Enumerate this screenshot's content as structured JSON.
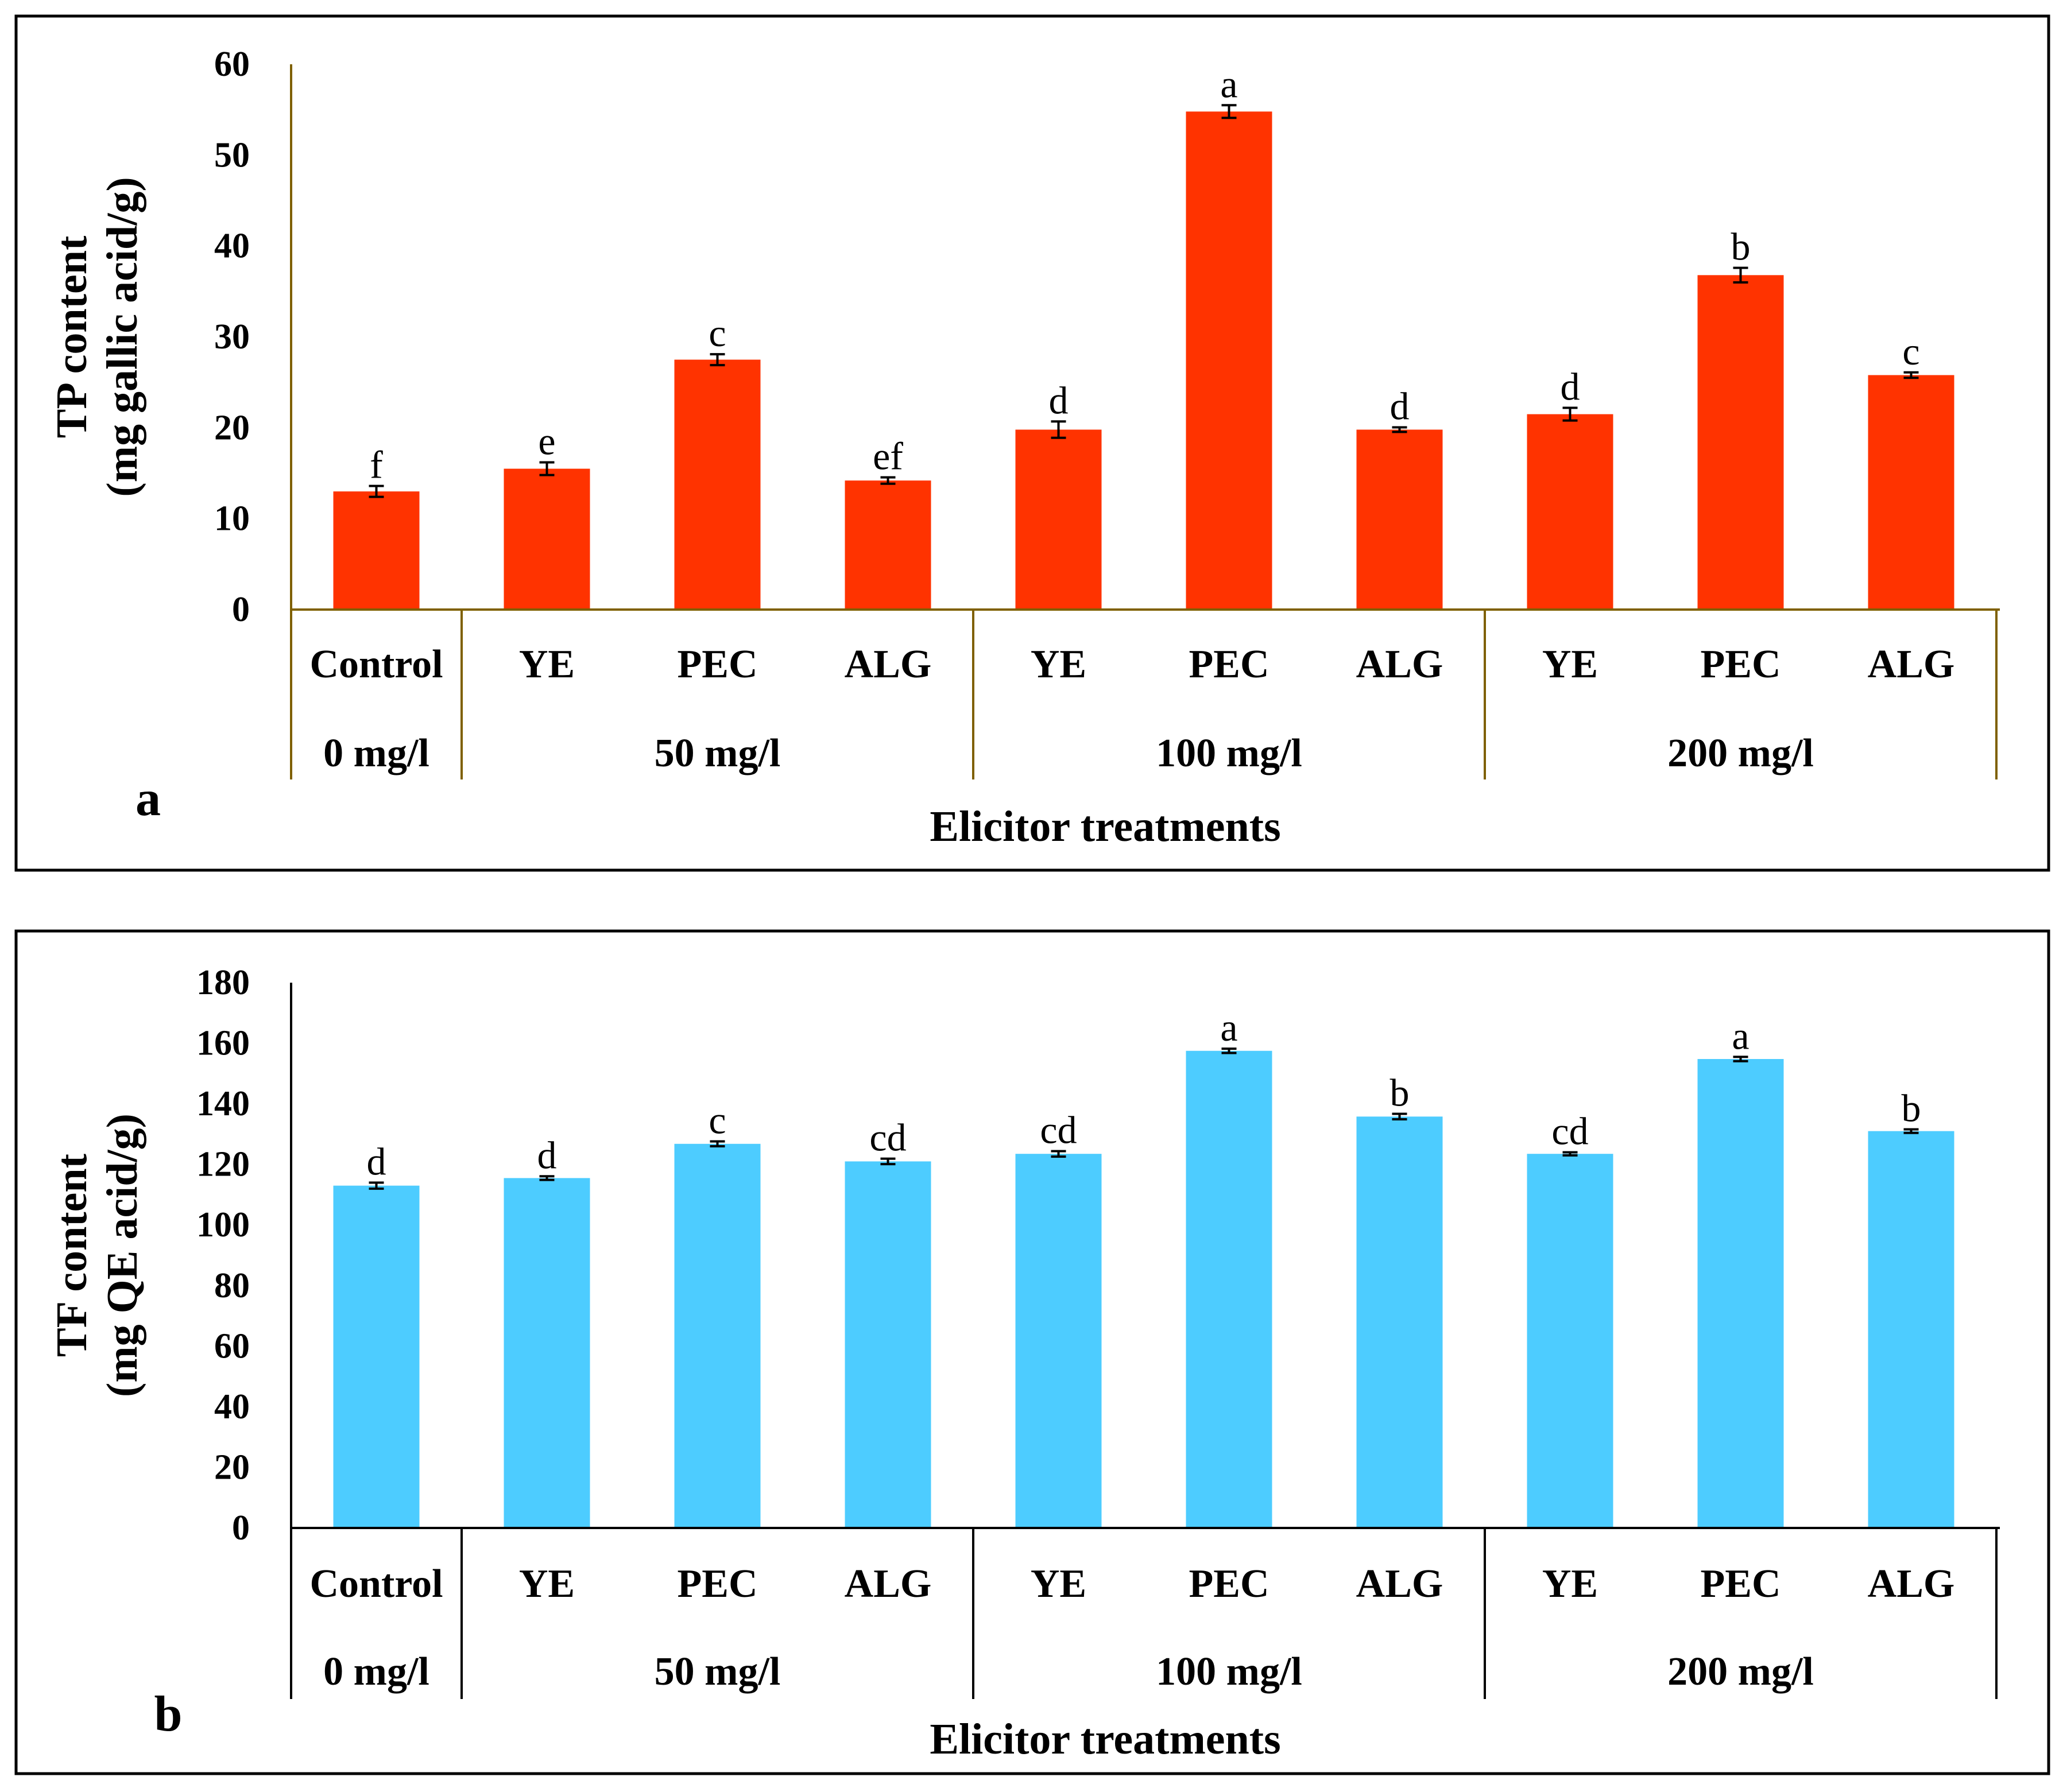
{
  "chart_data": [
    {
      "panel": "a",
      "type": "bar",
      "categories": [
        "Control",
        "YE",
        "PEC",
        "ALG",
        "YE",
        "PEC",
        "ALG",
        "YE",
        "PEC",
        "ALG"
      ],
      "groups": [
        "0 mg/l",
        "50 mg/l",
        "100 mg/l",
        "200 mg/l"
      ],
      "group_sizes": [
        1,
        3,
        3,
        3
      ],
      "values": [
        13,
        15.5,
        27.5,
        14.2,
        19.8,
        54.8,
        19.8,
        21.5,
        36.8,
        25.8
      ],
      "errors": [
        0.6,
        0.7,
        0.6,
        0.35,
        0.9,
        0.7,
        0.25,
        0.7,
        0.8,
        0.3
      ],
      "letters": [
        "f",
        "e",
        "c",
        "ef",
        "d",
        "a",
        "d",
        "d",
        "b",
        "c"
      ],
      "ylabel_line1": "TP content",
      "ylabel_line2": "(mg gallic acid/g)",
      "xlabel": "Elicitor treatments",
      "ylim": [
        0,
        60
      ],
      "yticks": [
        0,
        10,
        20,
        30,
        40,
        50,
        60
      ],
      "color": "#FF3300",
      "axis_color": "#7F6000"
    },
    {
      "panel": "b",
      "type": "bar",
      "categories": [
        "Control",
        "YE",
        "PEC",
        "ALG",
        "YE",
        "PEC",
        "ALG",
        "YE",
        "PEC",
        "ALG"
      ],
      "groups": [
        "0 mg/l",
        "50 mg/l",
        "100 mg/l",
        "200 mg/l"
      ],
      "group_sizes": [
        1,
        3,
        3,
        3
      ],
      "values": [
        113,
        115.5,
        126.8,
        121,
        123.5,
        157.5,
        135.8,
        123.5,
        154.8,
        131
      ],
      "errors": [
        1.0,
        0.6,
        0.8,
        0.9,
        0.9,
        0.7,
        0.9,
        0.5,
        0.7,
        0.6
      ],
      "letters": [
        "d",
        "d",
        "c",
        "cd",
        "cd",
        "a",
        "b",
        "cd",
        "a",
        "b"
      ],
      "ylabel_line1": "TF content",
      "ylabel_line2": "(mg QE acid/g)",
      "xlabel": "Elicitor treatments",
      "ylim": [
        0,
        180
      ],
      "yticks": [
        0,
        20,
        40,
        60,
        80,
        100,
        120,
        140,
        160,
        180
      ],
      "color": "#4DCCFF",
      "axis_color": "#000000"
    }
  ]
}
